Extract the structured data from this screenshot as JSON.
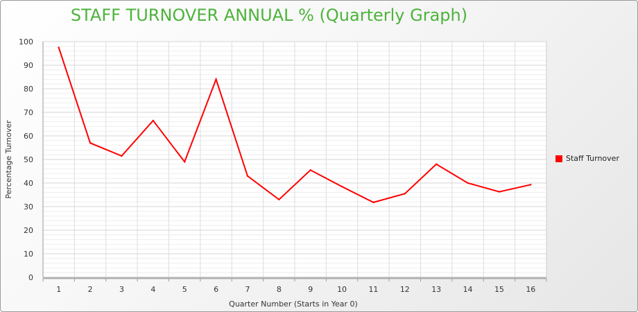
{
  "chart_data": {
    "type": "line",
    "title": "STAFF TURNOVER ANNUAL % (Quarterly Graph)",
    "xlabel": "Quarter Number (Starts in Year 0)",
    "ylabel": "Percentage Turnover",
    "categories": [
      "1",
      "2",
      "3",
      "4",
      "5",
      "6",
      "7",
      "8",
      "9",
      "10",
      "11",
      "12",
      "13",
      "14",
      "15",
      "16"
    ],
    "ylim": [
      0,
      100
    ],
    "yticks": [
      "0",
      "10",
      "20",
      "30",
      "40",
      "50",
      "60",
      "70",
      "80",
      "90",
      "100"
    ],
    "series": [
      {
        "name": "Staff Turnover",
        "color": "#ff0000",
        "values": [
          97.5,
          57,
          51.5,
          66.5,
          49,
          84,
          43,
          33,
          45.5,
          38.5,
          31.8,
          35.5,
          48,
          40,
          36.3,
          39.3
        ]
      }
    ],
    "grid": true,
    "legend_position": "right"
  }
}
